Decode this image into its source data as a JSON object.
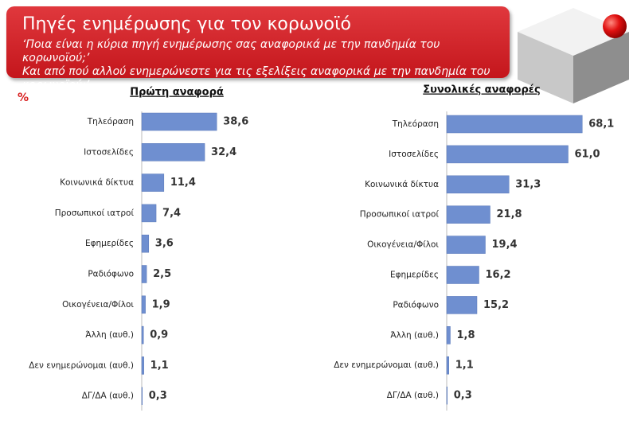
{
  "header": {
    "title": "Πηγές ενημέρωσης για τον κορωνοϊό",
    "subtitle": [
      "‘Ποια είναι η κύρια πηγή ενημέρωσης σας αναφορικά με την πανδημία του κορωνοϊού;’",
      "Και από πού αλλού ενημερώνεστε για τις εξελίξεις αναφορικά με την πανδημία του κορωνοϊού;’"
    ]
  },
  "unit": "%",
  "chart_data": [
    {
      "type": "bar",
      "orientation": "horizontal",
      "title": "Πρώτη αναφορά",
      "categories": [
        "Τηλεόραση",
        "Ιστοσελίδες",
        "Κοινωνικά δίκτυα",
        "Προσωπικοί ιατροί",
        "Εφημερίδες",
        "Ραδιόφωνο",
        "Οικογένεια/Φίλοι",
        "Άλλη (αυθ.)",
        "Δεν ενημερώνομαι (αυθ.)",
        "ΔΓ/ΔΑ (αυθ.)"
      ],
      "values": [
        38.6,
        32.4,
        11.4,
        7.4,
        3.6,
        2.5,
        1.9,
        0.9,
        1.1,
        0.3
      ],
      "value_labels": [
        "38,6",
        "32,4",
        "11,4",
        "7,4",
        "3,6",
        "2,5",
        "1,9",
        "0,9",
        "1,1",
        "0,3"
      ],
      "color": "#6f8fd0",
      "xlim": [
        0,
        100
      ]
    },
    {
      "type": "bar",
      "orientation": "horizontal",
      "title": "Συνολικές αναφορές",
      "categories": [
        "Τηλεόραση",
        "Ιστοσελίδες",
        "Κοινωνικά δίκτυα",
        "Προσωπικοί ιατροί",
        "Οικογένεια/Φίλοι",
        "Εφημερίδες",
        "Ραδιόφωνο",
        "Άλλη (αυθ.)",
        "Δεν ενημερώνομαι (αυθ.)",
        "ΔΓ/ΔΑ (αυθ.)"
      ],
      "values": [
        68.1,
        61.0,
        31.3,
        21.8,
        19.4,
        16.2,
        15.2,
        1.8,
        1.1,
        0.3
      ],
      "value_labels": [
        "68,1",
        "61,0",
        "31,3",
        "21,8",
        "19,4",
        "16,2",
        "15,2",
        "1,8",
        "1,1",
        "0,3"
      ],
      "color": "#6f8fd0",
      "xlim": [
        0,
        100
      ]
    }
  ]
}
